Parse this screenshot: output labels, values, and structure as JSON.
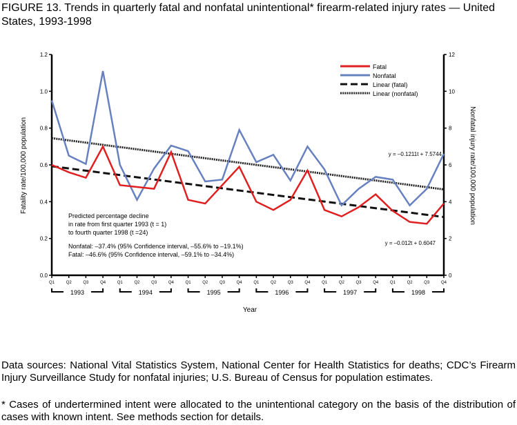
{
  "title": "FIGURE 13. Trends in quarterly fatal and nonfatal unintentional* firearm-related injury rates — United States, 1993-1998",
  "chart_data": {
    "type": "line",
    "title": "FIGURE 13. Trends in quarterly fatal and nonfatal unintentional* firearm-related injury rates — United States, 1993-1998",
    "xlabel": "Year",
    "ylabel": "Fatality rate/100,000 population",
    "y2label": "Nonfatal injury rate/100,000 population",
    "ylim": [
      0,
      1.2
    ],
    "y2lim": [
      0,
      12
    ],
    "yticks": [
      "0.0",
      "0.2",
      "0.4",
      "0.6",
      "0.8",
      "1.0",
      "1.2"
    ],
    "y2ticks": [
      "0",
      "2",
      "4",
      "6",
      "8",
      "10",
      "12"
    ],
    "quarters": [
      "Q1",
      "Q2",
      "Q3",
      "Q4"
    ],
    "years": [
      "1993",
      "1994",
      "1995",
      "1996",
      "1997",
      "1998"
    ],
    "legend_position": "top-right",
    "series": [
      {
        "name": "Fatal",
        "axis": "left",
        "color": "#e02020",
        "values": [
          0.6,
          0.56,
          0.53,
          0.7,
          0.49,
          0.48,
          0.47,
          0.67,
          0.41,
          0.39,
          0.49,
          0.59,
          0.4,
          0.355,
          0.41,
          0.57,
          0.355,
          0.32,
          0.37,
          0.44,
          0.35,
          0.29,
          0.28,
          0.39
        ]
      },
      {
        "name": "Nonfatal",
        "axis": "right",
        "color": "#6680c0",
        "values": [
          9.5,
          6.5,
          6.05,
          11.1,
          6.0,
          4.1,
          5.8,
          7.05,
          6.75,
          5.1,
          5.2,
          7.9,
          6.15,
          6.55,
          5.15,
          7.0,
          5.75,
          3.8,
          4.7,
          5.35,
          5.2,
          3.8,
          4.7,
          6.6
        ]
      },
      {
        "name": "Linear (fatal)",
        "axis": "left",
        "style": "dashed",
        "slope": -0.012,
        "intercept": 0.6047
      },
      {
        "name": "Linear (nonfatal)",
        "axis": "right",
        "style": "dotted",
        "slope": -0.1211,
        "intercept": 7.5744
      }
    ],
    "annotations": {
      "eq_nonfatal": "y = –0.1211t + 7.5744",
      "eq_fatal": "y = –0.012t + 0.6047",
      "decline_lines": [
        "Predicted percentage decline",
        "in rate from first quarter 1993 (t = 1)",
        "to fourth quarter 1998 (t =24)"
      ],
      "nonfatal_ci": "Nonfatal: –37.4% (95% Confidence interval, –55.6% to –19.1%)",
      "fatal_ci": "Fatal: –46.6% (95% Confidence interval, –59.1% to –34.4%)"
    }
  },
  "data_sources": "Data sources: National Vital Statistics System, National Center for Health Statistics for deaths; CDC’s Firearm Injury Surveillance Study for nonfatal injuries; U.S. Bureau of Census for population estimates.",
  "footnote": "* Cases of undertermined intent were allocated to the unintentional category on the basis of the distribution of cases with known intent. See methods section for details."
}
